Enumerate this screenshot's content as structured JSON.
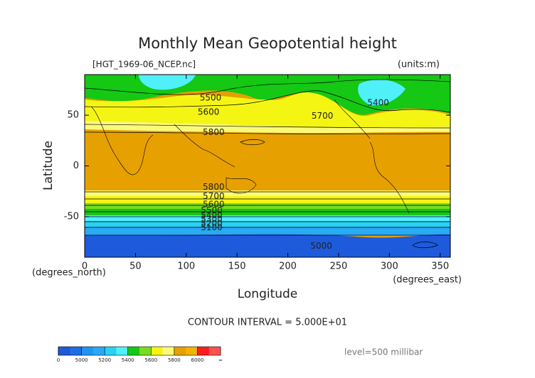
{
  "chart_data": {
    "type": "contour",
    "title": "Monthly Mean Geopotential height",
    "file_label": "[HGT_1969-06_NCEP.nc]",
    "units_label": "(units:m)",
    "x_label": "Longitude",
    "y_label": "Latitude",
    "x_unit_label": "(degrees_east)",
    "y_unit_label": "(degrees_north)",
    "xlim": [
      0,
      360
    ],
    "ylim": [
      -90,
      90
    ],
    "xticks": [
      0,
      50,
      100,
      150,
      200,
      250,
      300,
      350
    ],
    "yticks": [
      -50,
      0,
      50
    ],
    "contour_labels": [
      {
        "value": 5500,
        "x": 124,
        "y": 67
      },
      {
        "value": 5600,
        "x": 122,
        "y": 53
      },
      {
        "value": 5800,
        "x": 127,
        "y": 33
      },
      {
        "value": 5700,
        "x": 234,
        "y": 49
      },
      {
        "value": 5400,
        "x": 289,
        "y": 62
      },
      {
        "value": 5800,
        "x": 127,
        "y": -21
      },
      {
        "value": 5700,
        "x": 127,
        "y": -30
      },
      {
        "value": 5600,
        "x": 127,
        "y": -38
      },
      {
        "value": 5500,
        "x": 125,
        "y": -44
      },
      {
        "value": 5400,
        "x": 125,
        "y": -49
      },
      {
        "value": 5300,
        "x": 125,
        "y": -53
      },
      {
        "value": 5200,
        "x": 125,
        "y": -57
      },
      {
        "value": 5100,
        "x": 125,
        "y": -61
      },
      {
        "value": 5000,
        "x": 233,
        "y": -79
      }
    ],
    "contour_interval": "CONTOUR INTERVAL = 5.000E+01",
    "colorbar": {
      "ticks": [
        0,
        5000,
        5200,
        5400,
        5600,
        5800,
        6000
      ],
      "end_label": "∞",
      "colors": [
        "#1e5adc",
        "#1e6ee6",
        "#1e96f0",
        "#28aaf5",
        "#28d2f5",
        "#50f0fa",
        "#14c814",
        "#78dc1e",
        "#f5f514",
        "#fafa78",
        "#e6a000",
        "#f0b400",
        "#ff1e1e",
        "#ff5050"
      ]
    },
    "level": "level=500 millibar"
  }
}
